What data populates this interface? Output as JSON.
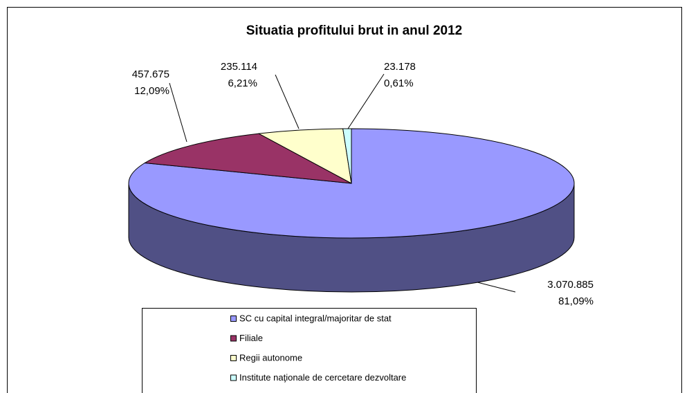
{
  "chart_data": {
    "type": "pie3d",
    "title": "Situatia profitului brut in anul 2012",
    "categories": [
      "SC cu capital integral/majoritar de stat",
      "Filiale",
      "Regii autonome",
      "Institute naţionale de cercetare dezvoltare"
    ],
    "values": [
      3070885,
      457675,
      235114,
      23178
    ],
    "value_labels": [
      "3.070.885",
      "457.675",
      "235.114",
      "23.178"
    ],
    "percents": [
      81.09,
      12.09,
      6.21,
      0.61
    ],
    "percent_labels": [
      "81,09%",
      "12,09%",
      "6,21%",
      "0,61%"
    ],
    "colors": [
      "#9999ff",
      "#993366",
      "#ffffcc",
      "#ccffff"
    ],
    "legend": "bottom"
  }
}
